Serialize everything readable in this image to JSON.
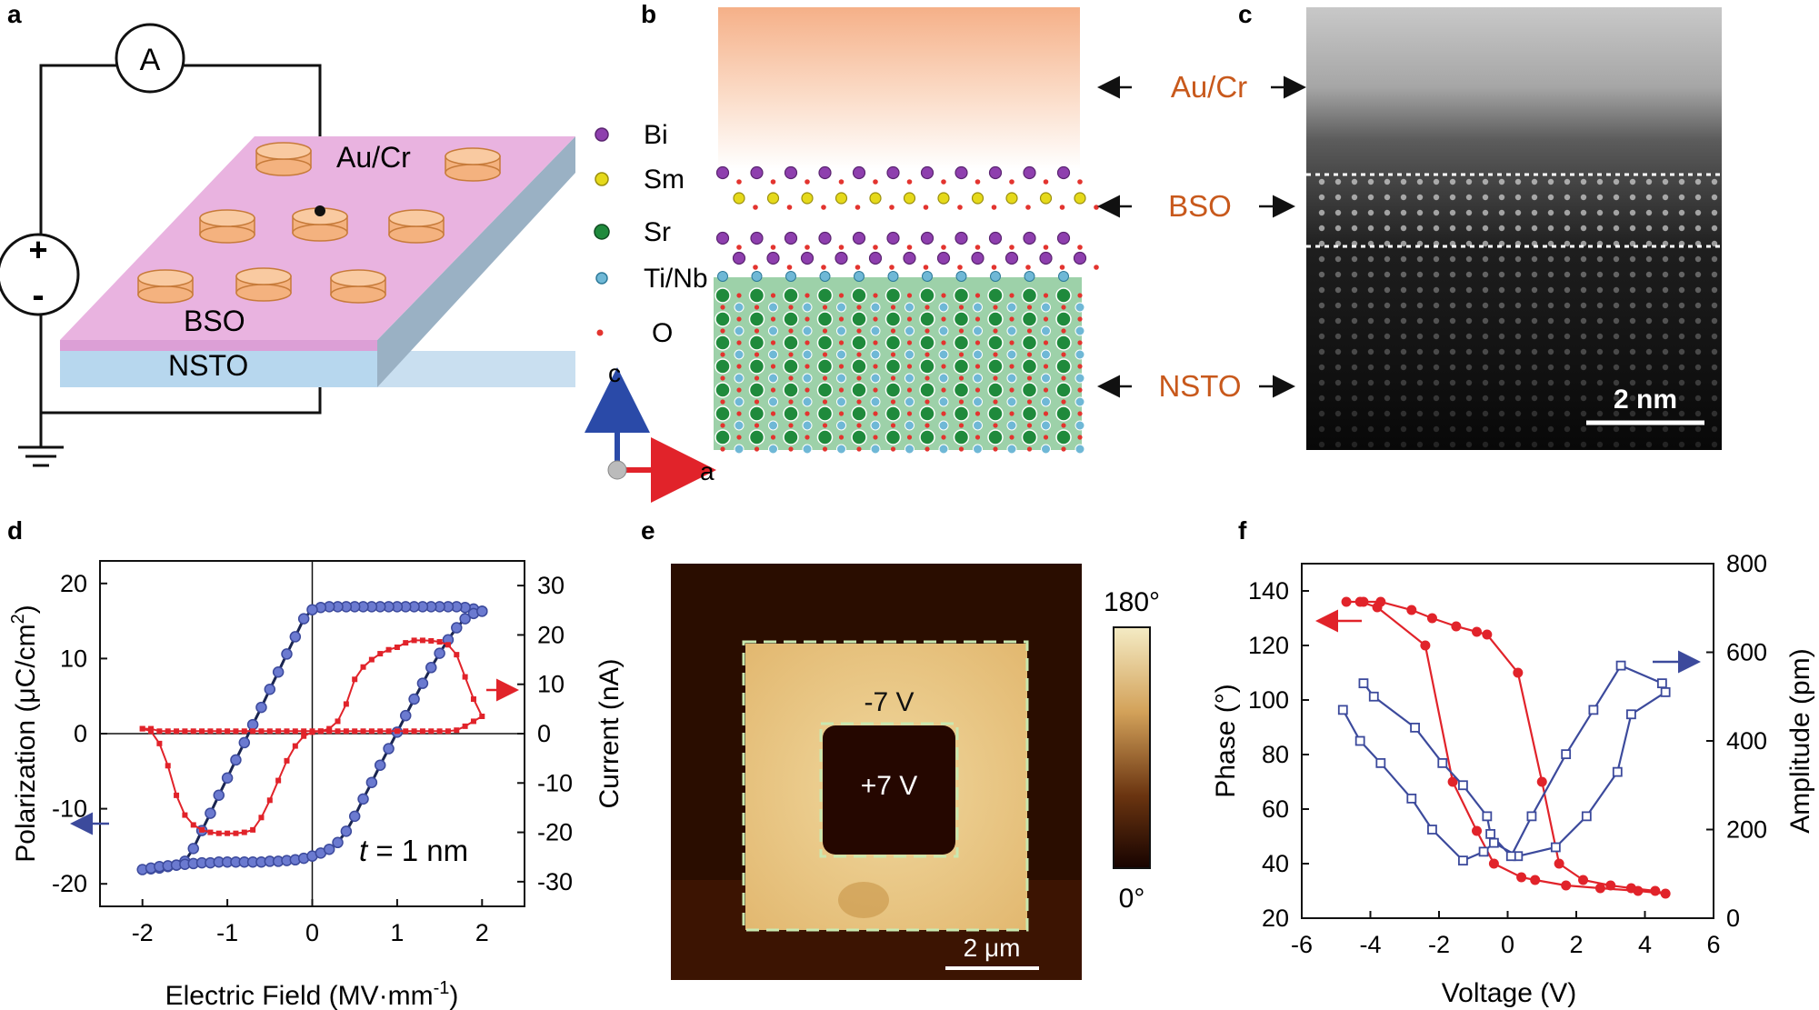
{
  "panel_labels": [
    "a",
    "b",
    "c",
    "d",
    "e",
    "f"
  ],
  "panel_a": {
    "ammeter": "A",
    "plus": "+",
    "minus": "-",
    "top_layer": "Au/Cr",
    "film": "BSO",
    "substrate": "NSTO"
  },
  "panel_b": {
    "legend": [
      "Bi",
      "Sm",
      "Sr",
      "Ti/Nb",
      "O"
    ],
    "axis_c": "c",
    "axis_a": "a",
    "colors": {
      "Bi": "#8e3fae",
      "Sm": "#e5d91a",
      "Sr": "#1f8a3c",
      "TiNb": "#6fb8d6",
      "O": "#e3342f"
    }
  },
  "panel_c": {
    "labels": [
      "Au/Cr",
      "BSO",
      "NSTO"
    ],
    "scalebar": "2 nm",
    "label_color": "#c8591c"
  },
  "chart_data": [
    {
      "panel": "d",
      "type": "line",
      "xlabel": "Electric Field (MV·mm",
      "xlabel_sup": "-1",
      "xlabel_end": ")",
      "ylabel": "Polarization (μC/cm",
      "ylabel_sup": "2",
      "ylabel_end": ")",
      "ylabel_right": "Current (nA)",
      "annotation_t": "t",
      "annotation_rest": " = 1 nm",
      "xlim": [
        -2.5,
        2.5
      ],
      "ylim": [
        -23,
        23
      ],
      "ylim_right": [
        -35,
        35
      ],
      "xticks": [
        -2,
        -1,
        0,
        1,
        2
      ],
      "yticks": [
        20,
        10,
        0,
        -10,
        -20
      ],
      "yticks_right": [
        30,
        20,
        10,
        0,
        -10,
        -20,
        -30
      ],
      "series": [
        {
          "name": "Polarization",
          "color": "#3c4a9c",
          "axis": "left",
          "x": [
            2.0,
            1.9,
            1.8,
            1.7,
            1.6,
            1.5,
            1.4,
            1.3,
            1.2,
            1.1,
            1.0,
            0.9,
            0.8,
            0.7,
            0.6,
            0.5,
            0.4,
            0.3,
            0.2,
            0.1,
            0.0,
            -0.1,
            -0.2,
            -0.3,
            -0.4,
            -0.5,
            -0.6,
            -0.7,
            -0.8,
            -0.9,
            -1.0,
            -1.1,
            -1.2,
            -1.3,
            -1.4,
            -1.5,
            -1.6,
            -1.7,
            -1.8,
            -1.9,
            -2.0,
            -1.9,
            -1.8,
            -1.7,
            -1.6,
            -1.5,
            -1.4,
            -1.3,
            -1.2,
            -1.1,
            -1.0,
            -0.9,
            -0.8,
            -0.7,
            -0.6,
            -0.5,
            -0.4,
            -0.3,
            -0.2,
            -0.1,
            0.0,
            0.1,
            0.2,
            0.3,
            0.4,
            0.5,
            0.6,
            0.7,
            0.8,
            0.9,
            1.0,
            1.1,
            1.2,
            1.3,
            1.4,
            1.5,
            1.6,
            1.7,
            1.8,
            1.9,
            2.0
          ],
          "y": [
            16.3,
            16.6,
            16.8,
            16.9,
            16.9,
            16.9,
            16.9,
            16.9,
            16.9,
            16.9,
            16.9,
            16.9,
            16.9,
            16.9,
            16.9,
            16.9,
            16.9,
            16.9,
            16.9,
            16.8,
            16.5,
            15.3,
            12.9,
            10.6,
            8.2,
            5.9,
            3.5,
            1.2,
            -1.2,
            -3.5,
            -5.9,
            -8.2,
            -10.6,
            -12.9,
            -15.3,
            -17.0,
            -17.5,
            -17.7,
            -17.9,
            -18.0,
            -18.1,
            -17.9,
            -17.7,
            -17.6,
            -17.5,
            -17.4,
            -17.3,
            -17.2,
            -17.2,
            -17.1,
            -17.1,
            -17.1,
            -17.1,
            -17.1,
            -17.1,
            -17.0,
            -17.0,
            -16.9,
            -16.8,
            -16.6,
            -16.3,
            -15.9,
            -15.4,
            -14.5,
            -13.0,
            -11.0,
            -8.7,
            -6.5,
            -4.2,
            -2.0,
            0.2,
            2.4,
            4.6,
            6.7,
            8.8,
            10.7,
            12.5,
            14.1,
            15.3,
            16.0,
            16.3
          ]
        },
        {
          "name": "Current",
          "color": "#e1232a",
          "axis": "right",
          "x": [
            -2.0,
            -1.9,
            -1.8,
            -1.7,
            -1.6,
            -1.5,
            -1.4,
            -1.3,
            -1.2,
            -1.1,
            -1.0,
            -0.9,
            -0.8,
            -0.7,
            -0.6,
            -0.5,
            -0.4,
            -0.3,
            -0.2,
            -0.1,
            0.0,
            0.1,
            0.2,
            0.3,
            0.4,
            0.5,
            0.6,
            0.7,
            0.8,
            0.9,
            1.0,
            1.1,
            1.2,
            1.3,
            1.4,
            1.5,
            1.6,
            1.7,
            1.8,
            1.9,
            2.0,
            1.9,
            1.8,
            1.7,
            1.6,
            1.5,
            1.4,
            1.3,
            1.2,
            1.1,
            1.0,
            0.9,
            0.8,
            0.7,
            0.6,
            0.5,
            0.4,
            0.3,
            0.2,
            0.1,
            0.0,
            -0.1,
            -0.2,
            -0.3,
            -0.4,
            -0.5,
            -0.6,
            -0.7,
            -0.8,
            -0.9,
            -1.0,
            -1.1,
            -1.2,
            -1.3,
            -1.4,
            -1.5,
            -1.6,
            -1.7,
            -1.8,
            -1.9,
            -2.0
          ],
          "y": [
            1.0,
            1.0,
            0.5,
            0.5,
            0.5,
            0.5,
            0.5,
            0.5,
            0.5,
            0.5,
            0.5,
            0.5,
            0.5,
            0.5,
            0.5,
            0.5,
            0.5,
            0.5,
            0.5,
            0.5,
            0.5,
            0.5,
            0.5,
            0.5,
            0.5,
            0.5,
            0.5,
            0.5,
            0.5,
            0.5,
            0.5,
            0.5,
            0.5,
            0.5,
            0.5,
            0.5,
            0.5,
            0.7,
            1.5,
            2.5,
            3.5,
            7.0,
            11.5,
            16.0,
            18.0,
            18.6,
            18.8,
            18.9,
            18.9,
            18.4,
            17.5,
            17.0,
            16.2,
            15.0,
            13.5,
            11.0,
            6.0,
            2.5,
            1.0,
            0.5,
            0.3,
            -0.5,
            -2.5,
            -5.5,
            -9.5,
            -13.5,
            -17.0,
            -19.5,
            -20.0,
            -20.2,
            -20.2,
            -20.2,
            -20.0,
            -19.5,
            -18.5,
            -16.5,
            -12.5,
            -6.5,
            -2.0,
            0.5,
            1.0
          ]
        }
      ]
    },
    {
      "panel": "e",
      "type": "heatmap",
      "labels": [
        "-7 V",
        "+7 V"
      ],
      "scalebar": "2 μm",
      "colorbar_max": "180°",
      "colorbar_min": "0°"
    },
    {
      "panel": "f",
      "type": "line",
      "xlabel": "Voltage (V)",
      "ylabel": "Phase (°)",
      "ylabel_right": "Amplitude (pm)",
      "xlim": [
        -6,
        6
      ],
      "ylim": [
        20,
        150
      ],
      "ylim_right": [
        0,
        800
      ],
      "xticks": [
        -6,
        -4,
        -2,
        0,
        2,
        4,
        6
      ],
      "yticks": [
        140,
        120,
        100,
        80,
        60,
        40,
        20
      ],
      "yticks_right": [
        800,
        600,
        400,
        200,
        0
      ],
      "series": [
        {
          "name": "Phase",
          "color": "#e1232a",
          "axis": "left",
          "x": [
            -4.7,
            -4.2,
            -3.7,
            -2.8,
            -2.2,
            -1.5,
            -0.9,
            -0.6,
            0.3,
            1.0,
            1.5,
            2.2,
            3.0,
            3.6,
            4.3,
            4.6,
            3.8,
            2.7,
            1.7,
            0.8,
            0.4,
            -0.4,
            -0.9,
            -1.6,
            -2.4,
            -3.8,
            -4.3
          ],
          "y": [
            136,
            136,
            136,
            133,
            130,
            127,
            125,
            124,
            110,
            70,
            40,
            34,
            32,
            31,
            30,
            29,
            30,
            31,
            32,
            34,
            35,
            40,
            52,
            70,
            120,
            134,
            136
          ]
        },
        {
          "name": "Amplitude",
          "color": "#3c4a9c",
          "axis": "right",
          "x": [
            -4.8,
            -4.3,
            -3.7,
            -2.8,
            -2.2,
            -1.3,
            -0.7,
            -0.4,
            0.3,
            1.4,
            2.3,
            3.2,
            3.6,
            4.6,
            4.5,
            3.3,
            2.5,
            1.7,
            0.7,
            0.1,
            -0.5,
            -0.6,
            -1.3,
            -1.9,
            -2.7,
            -3.9,
            -4.2
          ],
          "y": [
            470,
            400,
            350,
            270,
            200,
            130,
            150,
            170,
            140,
            160,
            230,
            330,
            460,
            510,
            530,
            570,
            470,
            370,
            230,
            140,
            190,
            230,
            300,
            350,
            430,
            500,
            530
          ]
        }
      ]
    }
  ]
}
